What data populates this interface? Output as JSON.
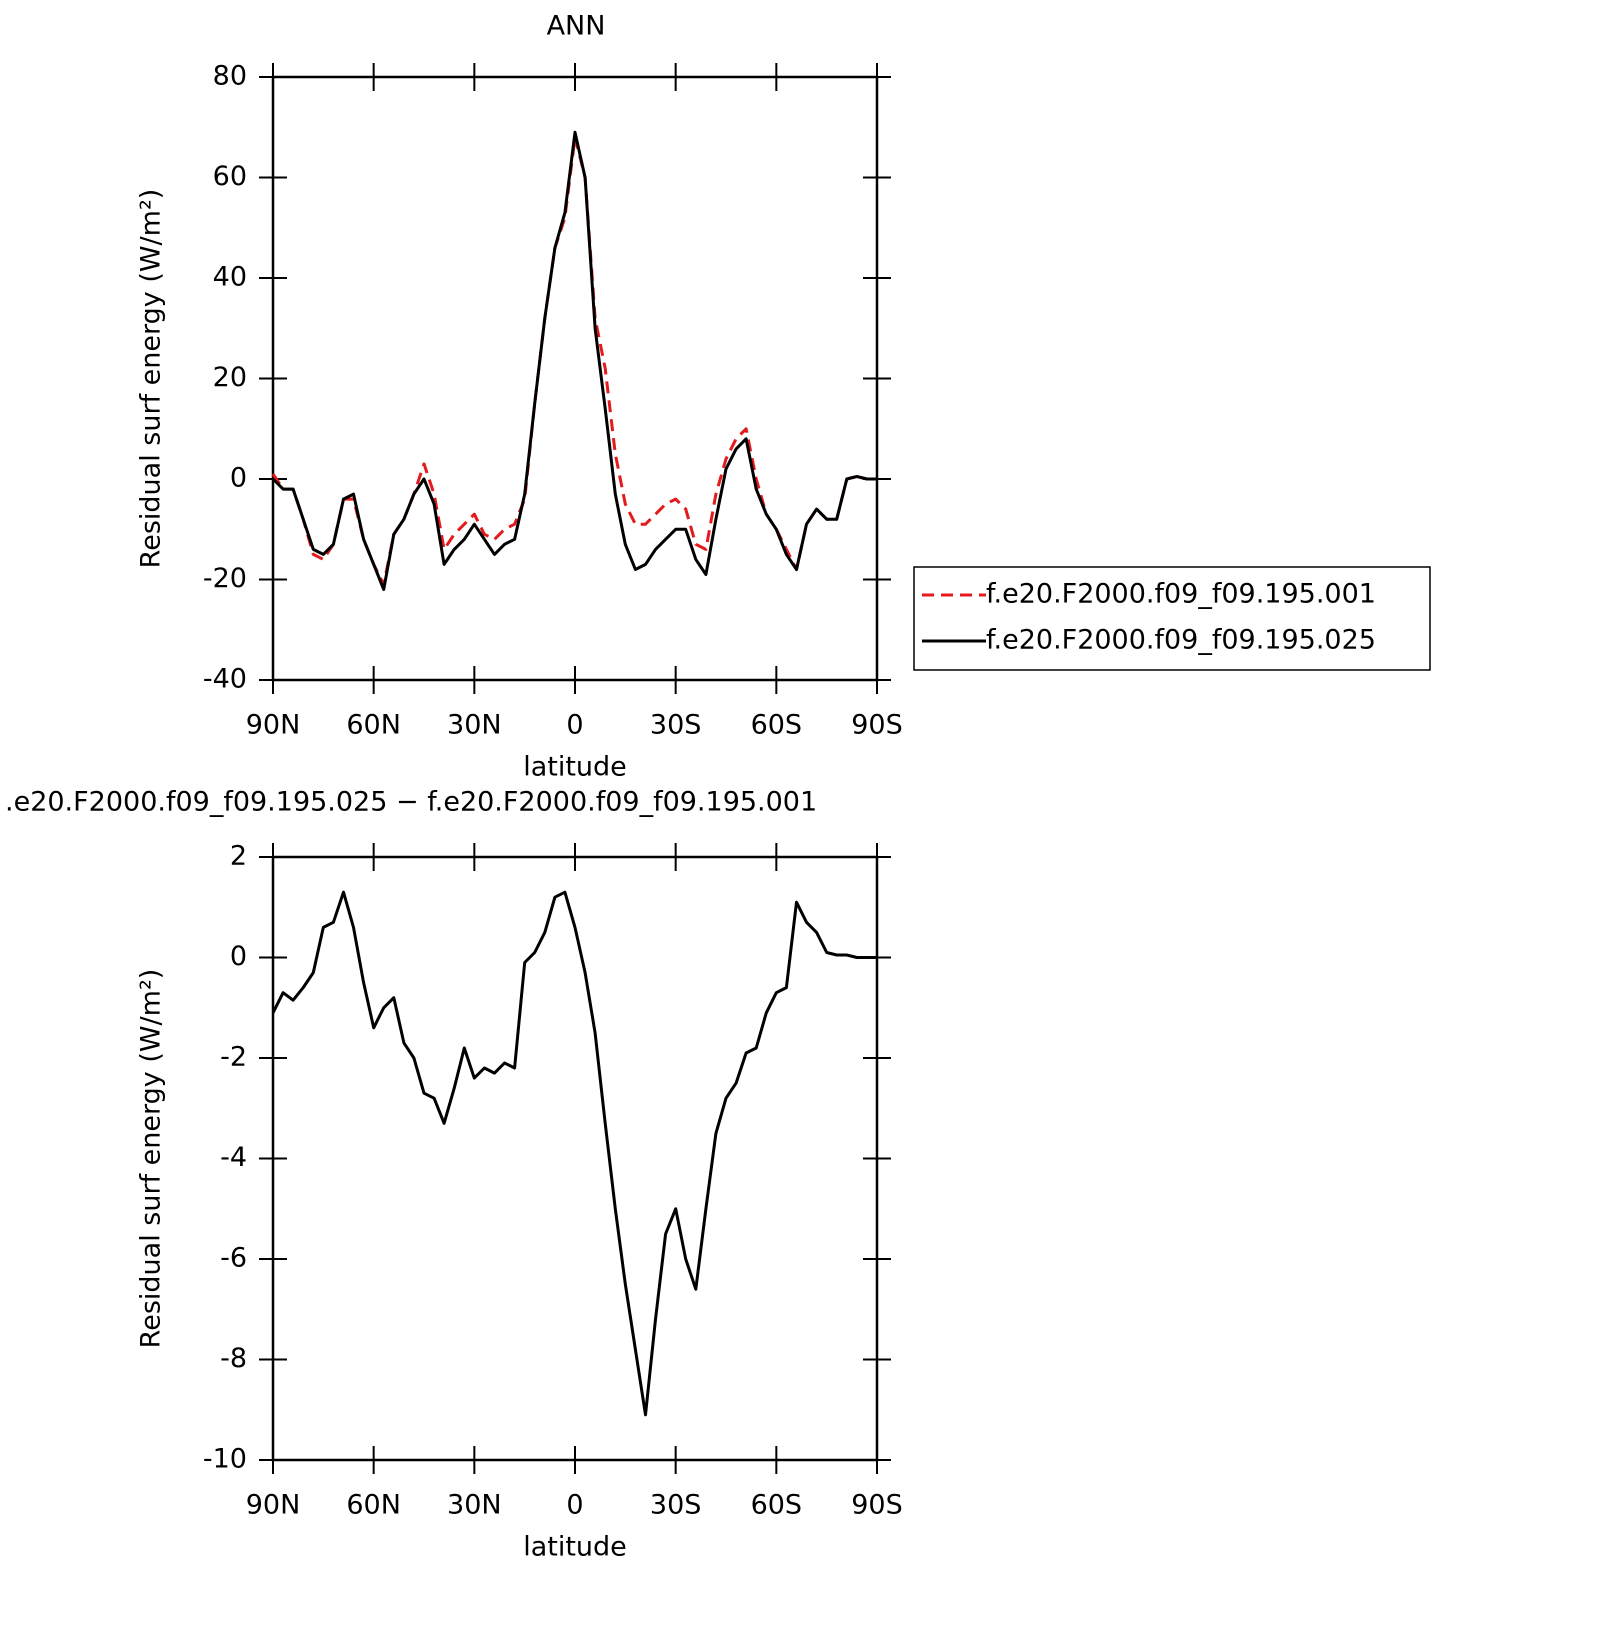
{
  "chart_data": [
    {
      "type": "line",
      "title": "ANN",
      "xlabel": "latitude",
      "ylabel": "Residual surf energy (W/m²)",
      "x": [
        90,
        87,
        84,
        81,
        78,
        75,
        72,
        69,
        66,
        63,
        60,
        57,
        54,
        51,
        48,
        45,
        42,
        39,
        36,
        33,
        30,
        27,
        24,
        21,
        18,
        15,
        12,
        9,
        6,
        3,
        0,
        -3,
        -6,
        -9,
        -12,
        -15,
        -18,
        -21,
        -24,
        -27,
        -30,
        -33,
        -36,
        -39,
        -42,
        -45,
        -48,
        -51,
        -54,
        -57,
        -60,
        -63,
        -66,
        -69,
        -72,
        -75,
        -78,
        -81,
        -84,
        -87,
        -90
      ],
      "xlim": [
        90,
        -90
      ],
      "xticks": [
        {
          "value": 90,
          "label": "90N"
        },
        {
          "value": 60,
          "label": "60N"
        },
        {
          "value": 30,
          "label": "30N"
        },
        0,
        {
          "value": -30,
          "label": "30S"
        },
        {
          "value": -60,
          "label": "60S"
        },
        {
          "value": -90,
          "label": "90S"
        }
      ],
      "ylim": [
        -40,
        80
      ],
      "yticks": [
        -40,
        -20,
        0,
        20,
        40,
        60,
        80
      ],
      "legend": "right",
      "series": [
        {
          "name": "f.e20.F2000.f09_f09.195.001",
          "color": "#e41a1c",
          "dash": true,
          "values": [
            1,
            -2,
            -2,
            -8,
            -15,
            -16,
            -13,
            -4,
            -4,
            -12,
            -17,
            -21,
            -11,
            -8,
            -3,
            3,
            -3,
            -14,
            -11,
            -9,
            -7,
            -11,
            -12,
            -10,
            -9,
            -4,
            15,
            32,
            46,
            52,
            68,
            60,
            32,
            22,
            5,
            -5,
            -9,
            -9,
            -7,
            -5,
            -4,
            -6,
            -13,
            -14,
            -3,
            4,
            8,
            10,
            0,
            -7,
            -10,
            -14,
            -18,
            -9,
            -6,
            -8,
            -8,
            0,
            0.5,
            0,
            0
          ]
        },
        {
          "name": "f.e20.F2000.f09_f09.195.025",
          "color": "#000000",
          "dash": false,
          "values": [
            0,
            -2,
            -2,
            -8,
            -14,
            -15,
            -13,
            -4,
            -3,
            -12,
            -17,
            -22,
            -11,
            -8,
            -3,
            0,
            -5,
            -17,
            -14,
            -12,
            -9,
            -12,
            -15,
            -13,
            -12,
            -3,
            15,
            32,
            46,
            53,
            69,
            60,
            30,
            14,
            -3,
            -13,
            -18,
            -17,
            -14,
            -12,
            -10,
            -10,
            -16,
            -19,
            -8,
            2,
            6,
            8,
            -2,
            -7,
            -10,
            -15,
            -18,
            -9,
            -6,
            -8,
            -8,
            0,
            0.5,
            0,
            0
          ]
        }
      ]
    },
    {
      "type": "line",
      "title": ".e20.F2000.f09_f09.195.025 − f.e20.F2000.f09_f09.195.001",
      "xlabel": "latitude",
      "ylabel": "Residual surf energy (W/m²)",
      "x": [
        90,
        87,
        84,
        81,
        78,
        75,
        72,
        69,
        66,
        63,
        60,
        57,
        54,
        51,
        48,
        45,
        42,
        39,
        36,
        33,
        30,
        27,
        24,
        21,
        18,
        15,
        12,
        9,
        6,
        3,
        0,
        -3,
        -6,
        -9,
        -12,
        -15,
        -18,
        -21,
        -24,
        -27,
        -30,
        -33,
        -36,
        -39,
        -42,
        -45,
        -48,
        -51,
        -54,
        -57,
        -60,
        -63,
        -66,
        -69,
        -72,
        -75,
        -78,
        -81,
        -84,
        -87,
        -90
      ],
      "xlim": [
        90,
        -90
      ],
      "xticks": [
        {
          "value": 90,
          "label": "90N"
        },
        {
          "value": 60,
          "label": "60N"
        },
        {
          "value": 30,
          "label": "30N"
        },
        0,
        {
          "value": -30,
          "label": "30S"
        },
        {
          "value": -60,
          "label": "60S"
        },
        {
          "value": -90,
          "label": "90S"
        }
      ],
      "ylim": [
        -10,
        2
      ],
      "yticks": [
        -10,
        -8,
        -6,
        -4,
        -2,
        0,
        2
      ],
      "color": "#000000",
      "values": [
        -1.1,
        -0.7,
        -0.85,
        -0.6,
        -0.3,
        0.6,
        0.7,
        1.3,
        0.6,
        -0.5,
        -1.4,
        -1.0,
        -0.8,
        -1.7,
        -2.0,
        -2.7,
        -2.8,
        -3.3,
        -2.6,
        -1.8,
        -2.4,
        -2.2,
        -2.3,
        -2.1,
        -2.2,
        -0.1,
        0.1,
        0.5,
        1.2,
        1.3,
        0.6,
        -0.3,
        -1.5,
        -3.3,
        -5.0,
        -6.5,
        -7.8,
        -9.1,
        -7.2,
        -5.5,
        -5.0,
        -6.0,
        -6.6,
        -5.0,
        -3.5,
        -2.8,
        -2.5,
        -1.9,
        -1.8,
        -1.1,
        -0.7,
        -0.6,
        1.1,
        0.7,
        0.5,
        0.1,
        0.05,
        0.05,
        0,
        0,
        0
      ]
    }
  ]
}
